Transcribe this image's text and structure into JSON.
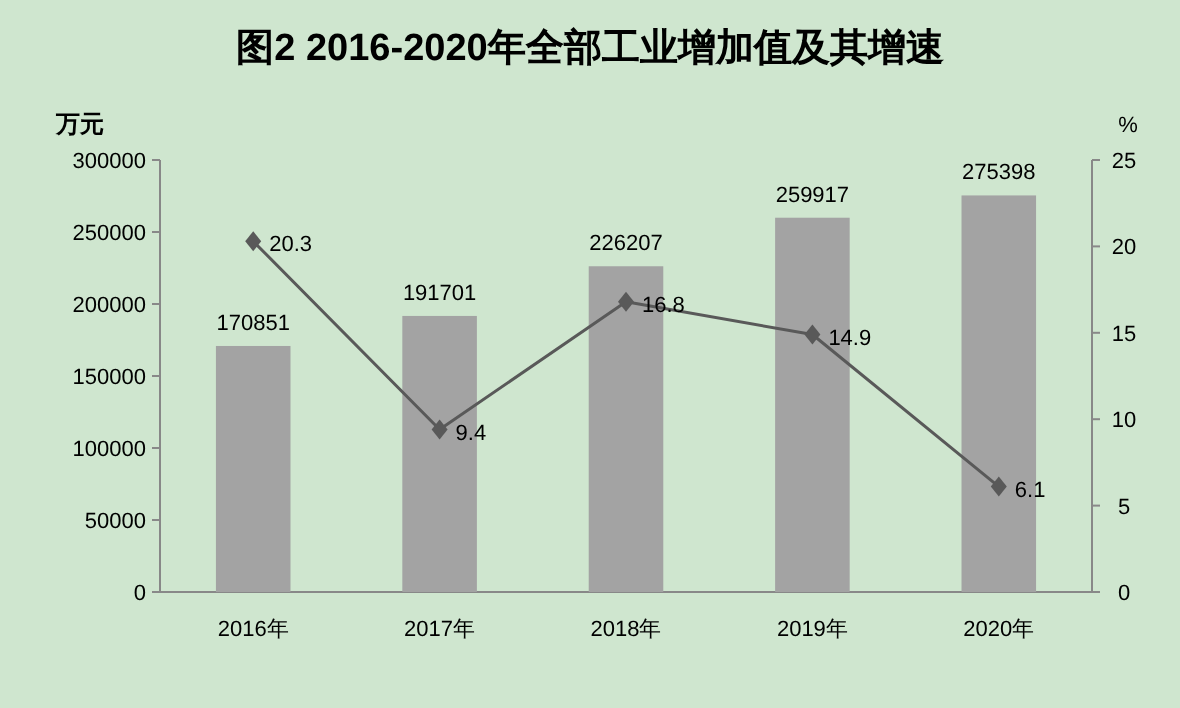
{
  "chart_data": {
    "type": "bar",
    "title": "图2  2016-2020年全部工业增加值及其增速",
    "ylabel": "万元",
    "y2label": "%",
    "categories": [
      "2016年",
      "2017年",
      "2018年",
      "2019年",
      "2020年"
    ],
    "series": [
      {
        "color": "#a3a3a3",
        "values": [
          170851,
          191701,
          226207,
          259917,
          275398
        ]
      },
      {
        "type": "line",
        "axis": "y2",
        "color": "#595959",
        "values": [
          20.3,
          9.4,
          16.8,
          14.9,
          6.1
        ]
      }
    ],
    "ylim": [
      0,
      300000
    ],
    "yticks": [
      0,
      50000,
      100000,
      150000,
      200000,
      250000,
      300000
    ],
    "y2lim": [
      0,
      25
    ],
    "y2ticks": [
      0,
      5,
      10,
      15,
      20,
      25
    ],
    "marker": "diamond",
    "data_labels": true
  }
}
